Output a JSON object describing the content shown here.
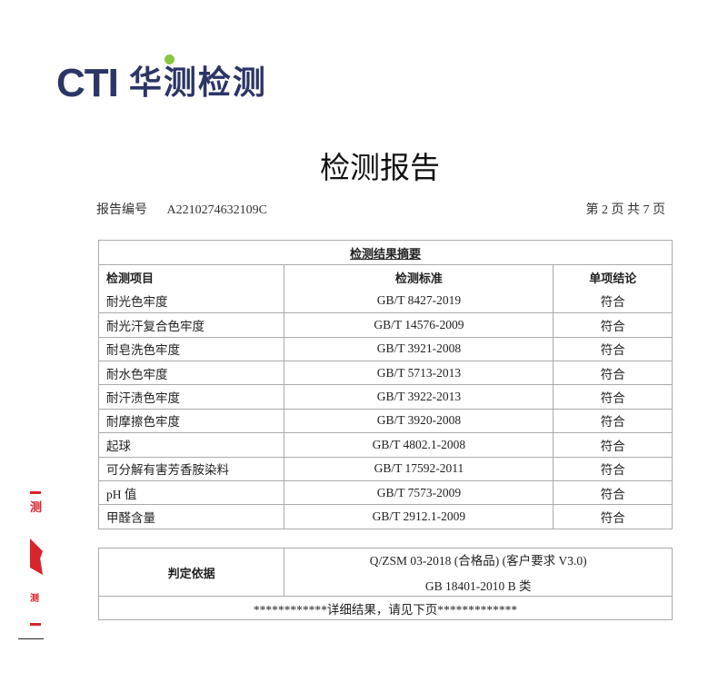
{
  "logo": {
    "brand": "CTI",
    "name": "华测检测",
    "colors": {
      "text": "#2b3566",
      "dot": "#8dc63f"
    }
  },
  "title": "检测报告",
  "report_no_label": "报告编号",
  "report_no": "A2210274632109C",
  "page_info": "第 2 页  共 7 页",
  "summary": {
    "title": "检测结果摘要",
    "headers": [
      "检测项目",
      "检测标准",
      "单项结论"
    ],
    "rows": [
      [
        "耐光色牢度",
        "GB/T 8427-2019",
        "符合"
      ],
      [
        "耐光汗复合色牢度",
        "GB/T 14576-2009",
        "符合"
      ],
      [
        "耐皂洗色牢度",
        "GB/T 3921-2008",
        "符合"
      ],
      [
        "耐水色牢度",
        "GB/T 5713-2013",
        "符合"
      ],
      [
        "耐汗渍色牢度",
        "GB/T 3922-2013",
        "符合"
      ],
      [
        "耐摩擦色牢度",
        "GB/T 3920-2008",
        "符合"
      ],
      [
        "起球",
        "GB/T 4802.1-2008",
        "符合"
      ],
      [
        "可分解有害芳香胺染料",
        "GB/T 17592-2011",
        "符合"
      ],
      [
        "pH 值",
        "GB/T 7573-2009",
        "符合"
      ],
      [
        "甲醛含量",
        "GB/T 2912.1-2009",
        "符合"
      ]
    ]
  },
  "judgment": {
    "label": "判定依据",
    "lines": [
      "Q/ZSM 03-2018 (合格品) (客户要求 V3.0)",
      "GB 18401-2010 B 类"
    ],
    "footer": "************详细结果，请见下页*************"
  },
  "stamp": {
    "color": "#d8232a"
  }
}
